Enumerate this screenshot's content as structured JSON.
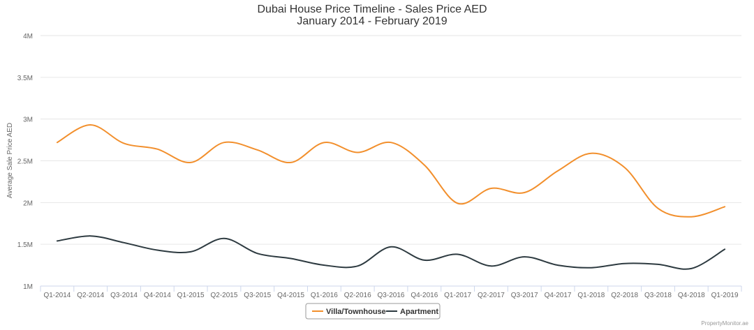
{
  "chart_data": {
    "type": "line",
    "title": "Dubai House Price Timeline - Sales Price AED",
    "subtitle": "January 2014 - February 2019",
    "xlabel": "",
    "ylabel": "Average Sale Price AED",
    "ylim": [
      1000000,
      4000000
    ],
    "yticks": [
      {
        "value": 1000000,
        "label": "1M"
      },
      {
        "value": 1500000,
        "label": "1.5M"
      },
      {
        "value": 2000000,
        "label": "2M"
      },
      {
        "value": 2500000,
        "label": "2.5M"
      },
      {
        "value": 3000000,
        "label": "3M"
      },
      {
        "value": 3500000,
        "label": "3.5M"
      },
      {
        "value": 4000000,
        "label": "4M"
      }
    ],
    "categories": [
      "Q1-2014",
      "Q2-2014",
      "Q3-2014",
      "Q4-2014",
      "Q1-2015",
      "Q2-2015",
      "Q3-2015",
      "Q4-2015",
      "Q1-2016",
      "Q2-2016",
      "Q3-2016",
      "Q4-2016",
      "Q1-2017",
      "Q2-2017",
      "Q3-2017",
      "Q4-2017",
      "Q1-2018",
      "Q2-2018",
      "Q3-2018",
      "Q4-2018",
      "Q1-2019"
    ],
    "series": [
      {
        "name": "Villa/Townhouse",
        "color": "#f28f2c",
        "values": [
          2720000,
          2930000,
          2710000,
          2640000,
          2480000,
          2720000,
          2630000,
          2480000,
          2720000,
          2600000,
          2720000,
          2450000,
          1990000,
          2170000,
          2120000,
          2380000,
          2590000,
          2420000,
          1930000,
          1830000,
          1950000
        ]
      },
      {
        "name": "Apartment",
        "color": "#2d3a40",
        "values": [
          1540000,
          1600000,
          1520000,
          1430000,
          1410000,
          1570000,
          1390000,
          1330000,
          1250000,
          1240000,
          1470000,
          1310000,
          1380000,
          1240000,
          1350000,
          1250000,
          1220000,
          1270000,
          1260000,
          1210000,
          1440000
        ]
      }
    ],
    "grid": true,
    "legend": "bottom-center",
    "credit": "PropertyMonitor.ae"
  }
}
